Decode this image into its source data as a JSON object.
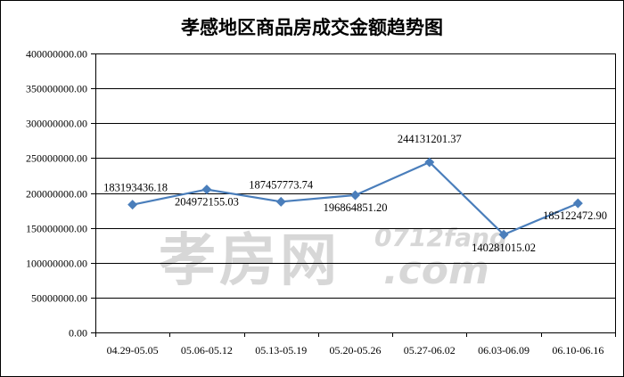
{
  "chart_data": {
    "type": "line",
    "title": "孝感地区商品房成交金额趋势图",
    "categories": [
      "04.29-05.05",
      "05.06-05.12",
      "05.13-05.19",
      "05.20-05.26",
      "05.27-06.02",
      "06.03-06.09",
      "06.10-06.16"
    ],
    "series": [
      {
        "values": [
          183193436.18,
          204972155.03,
          187457773.74,
          196864851.2,
          244131201.37,
          140281015.02,
          185122472.9
        ],
        "labels": [
          "183193436.18",
          "204972155.03",
          "187457773.74",
          "196864851.20",
          "244131201.37",
          "140281015.02",
          "185122472.90"
        ],
        "color": "#4a7ebb"
      }
    ],
    "ylim": [
      0,
      400000000
    ],
    "yticks": [
      0,
      50000000,
      100000000,
      150000000,
      200000000,
      250000000,
      300000000,
      350000000,
      400000000
    ],
    "ytick_labels": [
      "0.00",
      "50000000.00",
      "100000000.00",
      "150000000.00",
      "200000000.00",
      "250000000.00",
      "300000000.00",
      "350000000.00",
      "400000000.00"
    ],
    "grid": true
  },
  "watermark": {
    "cn": "孝房网",
    "url_top": "0712fang",
    "url_bottom": ".com"
  },
  "colors": {
    "series": "#4a7ebb",
    "watermark": "#d7d7d7"
  }
}
